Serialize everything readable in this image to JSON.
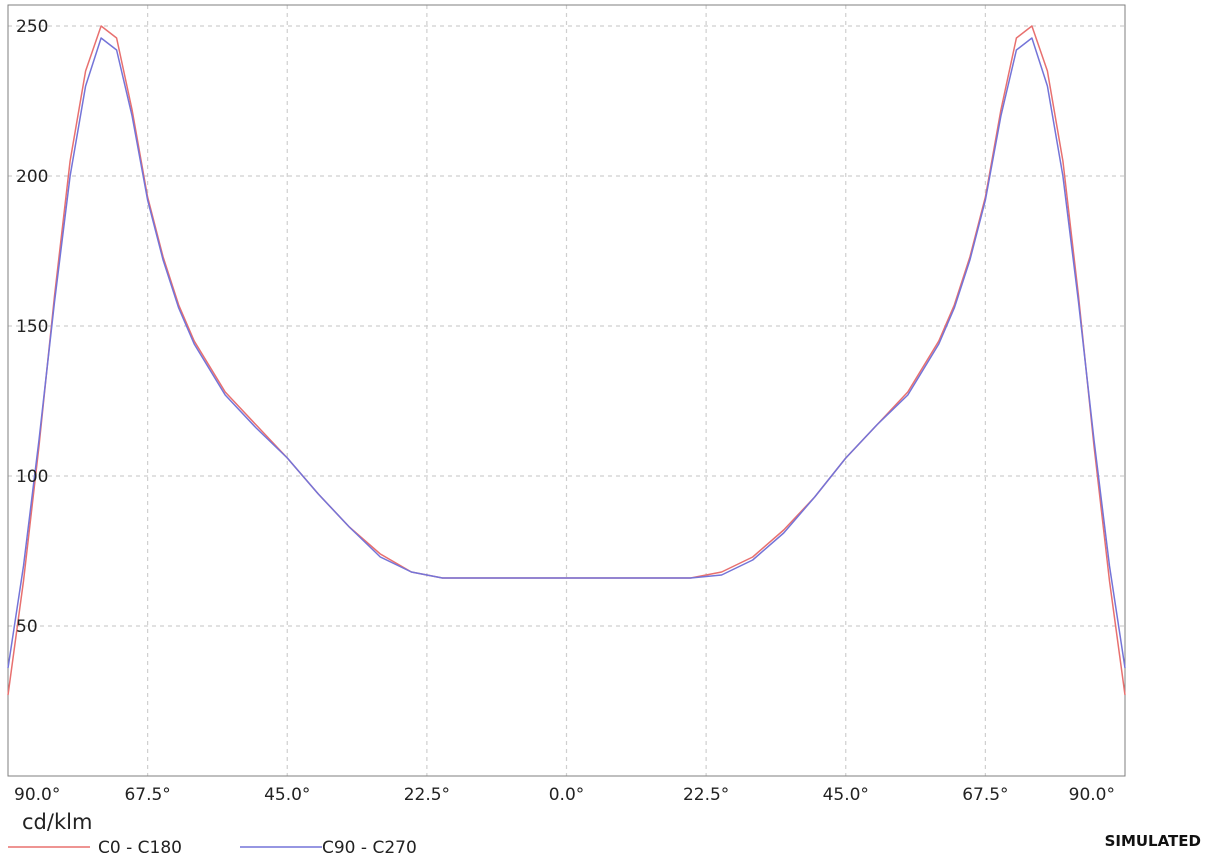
{
  "chart_data": {
    "type": "line",
    "y_unit_label": "cd/klm",
    "status_label": "SIMULATED",
    "x_tick_labels": [
      "90.0°",
      "67.5°",
      "45.0°",
      "22.5°",
      "0.0°",
      "22.5°",
      "45.0°",
      "67.5°",
      "90.0°"
    ],
    "x_tick_values": [
      -90,
      -67.5,
      -45,
      -22.5,
      0,
      22.5,
      45,
      67.5,
      90
    ],
    "xlim": [
      -90,
      90
    ],
    "y_ticks": [
      50,
      100,
      150,
      200,
      250
    ],
    "ylim": [
      0,
      257
    ],
    "grid": true,
    "legend_position": "bottom-left",
    "series": [
      {
        "name": "C0 - C180",
        "color": "#e8706f",
        "x": [
          -90,
          -87.5,
          -85,
          -82.5,
          -80,
          -77.5,
          -75,
          -72.5,
          -70,
          -67.5,
          -65,
          -62.5,
          -60,
          -55,
          -50,
          -45,
          -40,
          -35,
          -30,
          -25,
          -20,
          -15,
          -10,
          -5,
          0,
          5,
          10,
          15,
          20,
          25,
          30,
          35,
          40,
          45,
          50,
          55,
          60,
          62.5,
          65,
          67.5,
          70,
          72.5,
          75,
          77.5,
          80,
          82.5,
          85,
          87.5,
          90
        ],
        "y": [
          27,
          65,
          110,
          160,
          205,
          235,
          250,
          246,
          222,
          193,
          173,
          157,
          145,
          128,
          117,
          106,
          94,
          83,
          74,
          68,
          66,
          66,
          66,
          66,
          66,
          66,
          66,
          66,
          66,
          68,
          73,
          82,
          93,
          106,
          117,
          128,
          145,
          157,
          173,
          193,
          222,
          246,
          250,
          235,
          205,
          160,
          110,
          65,
          27
        ]
      },
      {
        "name": "C90 - C270",
        "color": "#7474d8",
        "x": [
          -90,
          -87.5,
          -85,
          -82.5,
          -80,
          -77.5,
          -75,
          -72.5,
          -70,
          -67.5,
          -65,
          -62.5,
          -60,
          -55,
          -50,
          -45,
          -40,
          -35,
          -30,
          -25,
          -20,
          -15,
          -10,
          -5,
          0,
          5,
          10,
          15,
          20,
          25,
          30,
          35,
          40,
          45,
          50,
          55,
          60,
          62.5,
          65,
          67.5,
          70,
          72.5,
          75,
          77.5,
          80,
          82.5,
          85,
          87.5,
          90
        ],
        "y": [
          36,
          70,
          112,
          158,
          200,
          230,
          246,
          242,
          220,
          192,
          172,
          156,
          144,
          127,
          116,
          106,
          94,
          83,
          73,
          68,
          66,
          66,
          66,
          66,
          66,
          66,
          66,
          66,
          66,
          67,
          72,
          81,
          93,
          106,
          117,
          127,
          144,
          156,
          172,
          192,
          220,
          242,
          246,
          230,
          200,
          158,
          112,
          70,
          36
        ]
      }
    ]
  }
}
